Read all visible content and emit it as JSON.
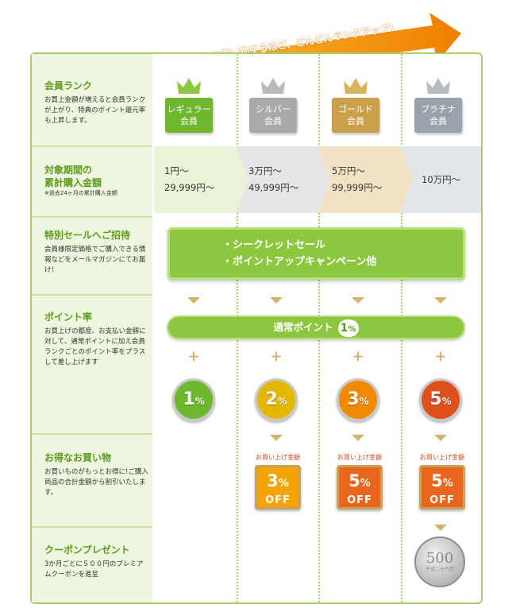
{
  "banner": {
    "text": "お買い物するほど、どんどんランクアップ!"
  },
  "sections": {
    "rank": {
      "title": "会員ランク",
      "text": "お買上金額が増えると会員ランクが上がり、特典のポイント還元率も上昇します。"
    },
    "amount": {
      "title_1": "対象期間の",
      "title_2": "累計購入金額",
      "note": "※過去24ヶ月の累計購入金額"
    },
    "sale": {
      "title": "特別セールへご招待",
      "text": "会員様限定価格でご購入できる情報などをメールマガジンにてお届け！"
    },
    "point": {
      "title": "ポイント率",
      "text": "お買上げの都度、お支払い金額に対して、通常ポイントに加え会員ランクごとのポイント率をプラスして差し上げます"
    },
    "discount": {
      "title": "お得なお買い物",
      "text": "お買いものがもっとお得に!ご購入商品の合計金額から割引いたします。"
    },
    "coupon": {
      "title": "クーポンプレゼント",
      "text": "3か月ごとに５００円のプレミアムクーポンを進呈"
    }
  },
  "ranks": [
    {
      "line1": "レギュラー",
      "line2": "会員",
      "color": "#6fb72f",
      "crown": "#8dc63f",
      "range1": "1円〜",
      "range2": "29,999円〜",
      "band": "#e9f4d6",
      "medal": "1",
      "medal_color": "#6fb72f"
    },
    {
      "line1": "シルバー",
      "line2": "会員",
      "color": "#a9a9a9",
      "crown": "#b9b9b9",
      "range1": "3万円〜",
      "range2": "49,999円〜",
      "band": "#e6e6e6",
      "medal": "2",
      "medal_color": "#e5b800"
    },
    {
      "line1": "ゴールド",
      "line2": "会員",
      "color": "#c9a04b",
      "crown": "#d8b35c",
      "range1": "5万円〜",
      "range2": "99,999円〜",
      "band": "#f1e2c6",
      "medal": "3",
      "medal_color": "#f08a00"
    },
    {
      "line1": "プラチナ",
      "line2": "会員",
      "color": "#9aa3ab",
      "crown": "#b5bcc2",
      "range1": "10万円〜",
      "band": "#e1e6ea",
      "medal": "5",
      "medal_color": "#e0501c"
    }
  ],
  "sale_box": {
    "line1": "・シークレットセール",
    "line2": "・ポイントアップキャンペーン他"
  },
  "normal_point": {
    "label": "通常ポイント",
    "num": "1",
    "unit": "%"
  },
  "percent_unit": "%",
  "discounts": [
    {
      "label": "お買い上げ金額",
      "pct": "3",
      "off": "OFF",
      "color": "#f4a300"
    },
    {
      "label": "お買い上げ金額",
      "pct": "5",
      "off": "OFF",
      "color": "#e9661c"
    },
    {
      "label": "お買い上げ金額",
      "pct": "5",
      "off": "OFF",
      "color": "#e9661c"
    }
  ],
  "coin": {
    "value": "500",
    "year": "平成二十六年"
  }
}
